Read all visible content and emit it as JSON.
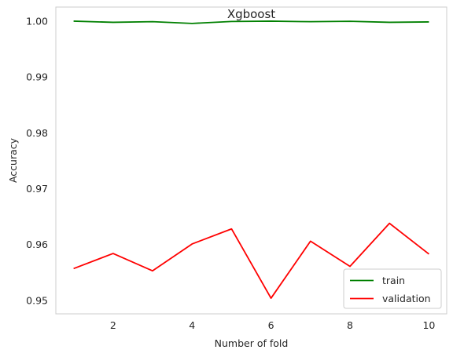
{
  "chart_data": {
    "type": "line",
    "title": "Xgboost",
    "xlabel": "Number of fold",
    "ylabel": "Accuracy",
    "x": [
      1,
      2,
      3,
      4,
      5,
      6,
      7,
      8,
      9,
      10
    ],
    "xlim": [
      0.55,
      10.45
    ],
    "ylim": [
      0.9476,
      1.0025
    ],
    "xticks": [
      2,
      4,
      6,
      8,
      10
    ],
    "yticks": [
      0.95,
      0.96,
      0.97,
      0.98,
      0.99,
      1.0
    ],
    "ytick_labels": [
      "0.95",
      "0.96",
      "0.97",
      "0.98",
      "0.99",
      "1.00"
    ],
    "grid": false,
    "legend": {
      "position": "lower-right"
    },
    "series": [
      {
        "name": "train",
        "color": "#008000",
        "values": [
          0.99998,
          0.99977,
          0.99988,
          0.99957,
          0.99992,
          0.99998,
          0.99988,
          0.99996,
          0.99977,
          0.99984
        ]
      },
      {
        "name": "validation",
        "color": "#ff0000",
        "values": [
          0.9557,
          0.9584,
          0.9553,
          0.9601,
          0.9628,
          0.9504,
          0.9606,
          0.9561,
          0.9638,
          0.9583
        ]
      }
    ]
  }
}
